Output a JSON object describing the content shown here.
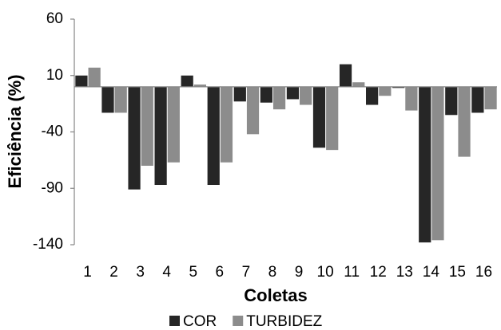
{
  "chart_data": {
    "type": "bar",
    "x_label": "Coletas",
    "y_label": "Eficiência (%)",
    "categories": [
      "1",
      "2",
      "3",
      "4",
      "5",
      "6",
      "7",
      "8",
      "9",
      "10",
      "11",
      "12",
      "13",
      "14",
      "15",
      "16"
    ],
    "series": [
      {
        "name": "COR",
        "color": "#262626",
        "values": [
          10,
          -23,
          -91,
          -87,
          10,
          -87,
          -13,
          -14,
          -11,
          -54,
          20,
          -16,
          -1,
          -138,
          -25,
          -23
        ]
      },
      {
        "name": "TURBIDEZ",
        "color": "#8c8c8c",
        "values": [
          17,
          -23,
          -70,
          -67,
          2,
          -67,
          -42,
          -20,
          -16,
          -56,
          4,
          -8,
          -21,
          -136,
          -62,
          -20
        ]
      }
    ],
    "ylim": [
      -140,
      60
    ],
    "yticks": [
      -140,
      -90,
      -40,
      10,
      60
    ],
    "grid": false
  }
}
